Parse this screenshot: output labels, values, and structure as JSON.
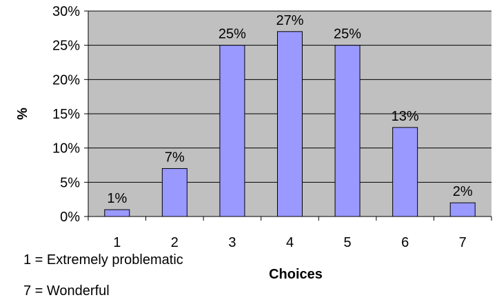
{
  "chart_data": {
    "type": "bar",
    "categories": [
      "1",
      "2",
      "3",
      "4",
      "5",
      "6",
      "7"
    ],
    "values": [
      1,
      7,
      25,
      27,
      25,
      13,
      2
    ],
    "data_labels": [
      "1%",
      "7%",
      "25%",
      "27%",
      "25%",
      "13%",
      "2%"
    ],
    "title": "",
    "xlabel": "Choices",
    "ylabel": "%",
    "ylim": [
      0,
      30
    ],
    "y_ticks": [
      0,
      5,
      10,
      15,
      20,
      25,
      30
    ],
    "y_tick_labels": [
      "0%",
      "5%",
      "10%",
      "15%",
      "20%",
      "25%",
      "30%"
    ],
    "grid": true,
    "legend": "none",
    "colors": {
      "plot_background": "#c0c0c0",
      "bar_fill": "#9999ff",
      "bar_stroke": "#000000",
      "gridline": "#000000"
    }
  },
  "notes": [
    "1 = Extremely problematic",
    "7 = Wonderful"
  ]
}
